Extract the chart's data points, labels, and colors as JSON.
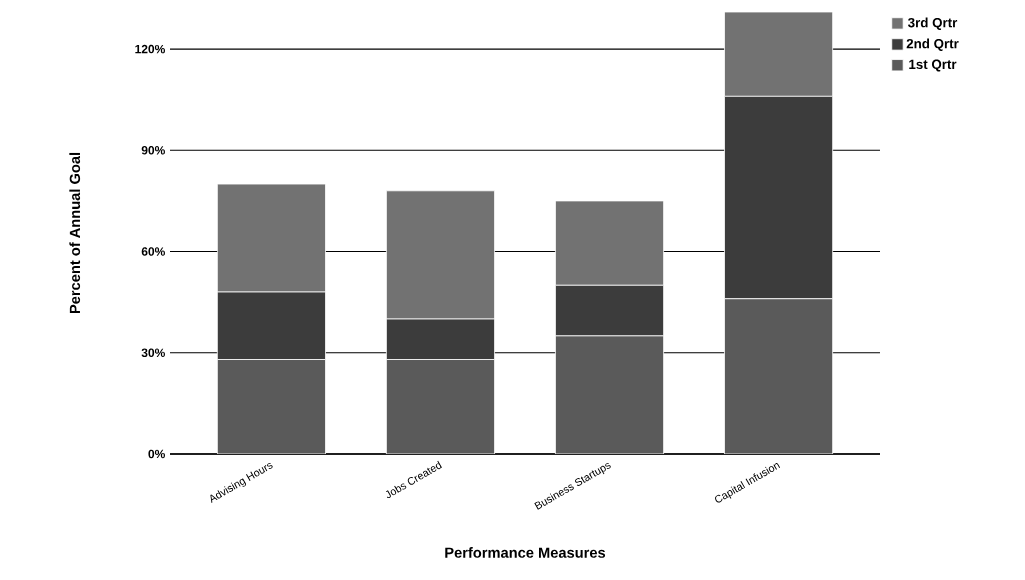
{
  "chart_data": {
    "type": "bar",
    "stacked": true,
    "xlabel": "Performance Measures",
    "ylabel": "Percent of Annual Goal",
    "categories": [
      "Advising Hours",
      "Jobs Created",
      "Business Startups",
      "Capital Infusion"
    ],
    "series": [
      {
        "name": "1st Qrtr",
        "color": "#5a5a5a",
        "values": [
          28,
          28,
          35,
          46
        ]
      },
      {
        "name": "2nd Qrtr",
        "color": "#3c3c3c",
        "values": [
          20,
          12,
          15,
          60
        ]
      },
      {
        "name": "3rd Qrtr",
        "color": "#727272",
        "values": [
          32,
          38,
          25,
          25
        ]
      }
    ],
    "ylim": [
      0,
      131
    ],
    "yticks": [
      {
        "value": 0,
        "label": "0%"
      },
      {
        "value": 30,
        "label": "30%"
      },
      {
        "value": 60,
        "label": "60%"
      },
      {
        "value": 90,
        "label": "90%"
      },
      {
        "value": 120,
        "label": "120%"
      }
    ],
    "grid": "y",
    "legend": "top right"
  }
}
